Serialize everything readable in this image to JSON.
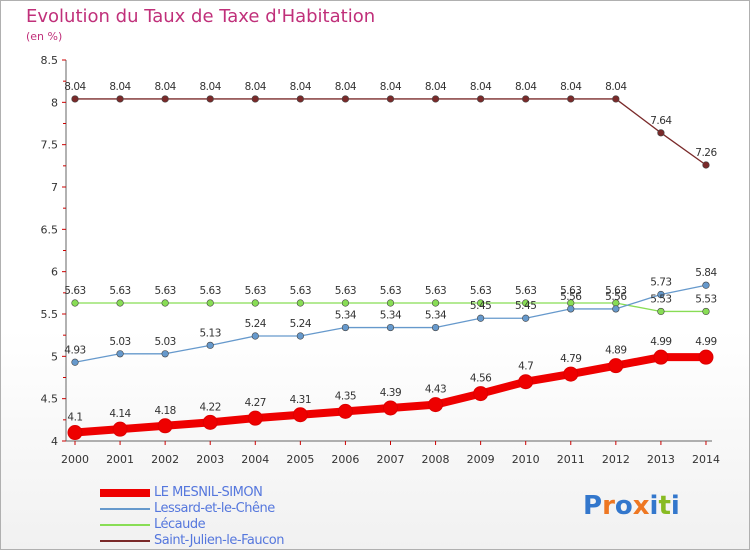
{
  "header": {
    "title": "Evolution du Taux de Taxe d'Habitation",
    "unit": "(en %)"
  },
  "chart_data": {
    "type": "line",
    "title": "Evolution du Taux de Taxe d'Habitation",
    "ylabel": "(en %)",
    "xlabel": "",
    "ylim": [
      4,
      8.5
    ],
    "yticks": [
      "4",
      "4.5",
      "5",
      "5.5",
      "6",
      "6.5",
      "7",
      "7.5",
      "8",
      "8.5"
    ],
    "x": [
      "2000",
      "2001",
      "2002",
      "2003",
      "2004",
      "2005",
      "2006",
      "2007",
      "2008",
      "2009",
      "2010",
      "2011",
      "2012",
      "2013",
      "2014"
    ],
    "grid": false,
    "legend_position": "bottom",
    "series": [
      {
        "name": "LE MESNIL-SIMON",
        "color": "#ee0000",
        "values": [
          4.1,
          4.14,
          4.18,
          4.22,
          4.27,
          4.31,
          4.35,
          4.39,
          4.43,
          4.56,
          4.7,
          4.79,
          4.89,
          4.99,
          4.99
        ],
        "labels": [
          "4.1",
          "4.14",
          "4.18",
          "4.22",
          "4.27",
          "4.31",
          "4.35",
          "4.39",
          "4.43",
          "4.56",
          "4.7",
          "4.79",
          "4.89",
          "4.99",
          "4.99"
        ]
      },
      {
        "name": "Lessard-et-le-Chêne",
        "color": "#6699cc",
        "values": [
          4.93,
          5.03,
          5.03,
          5.13,
          5.24,
          5.24,
          5.34,
          5.34,
          5.34,
          5.45,
          5.45,
          5.56,
          5.56,
          5.73,
          5.84
        ],
        "labels": [
          "4.93",
          "5.03",
          "5.03",
          "5.13",
          "5.24",
          "5.24",
          "5.34",
          "5.34",
          "5.34",
          "5.45",
          "5.45",
          "5.56",
          "5.56",
          "5.73",
          "5.84"
        ]
      },
      {
        "name": "Lécaude",
        "color": "#88dd55",
        "values": [
          5.63,
          5.63,
          5.63,
          5.63,
          5.63,
          5.63,
          5.63,
          5.63,
          5.63,
          5.63,
          5.63,
          5.63,
          5.63,
          5.53,
          5.53
        ],
        "labels": [
          "5.63",
          "5.63",
          "5.63",
          "5.63",
          "5.63",
          "5.63",
          "5.63",
          "5.63",
          "5.63",
          "5.63",
          "5.63",
          "5.63",
          "5.63",
          "5.53",
          "5.53"
        ]
      },
      {
        "name": "Saint-Julien-le-Faucon",
        "color": "#7a2a2a",
        "values": [
          8.04,
          8.04,
          8.04,
          8.04,
          8.04,
          8.04,
          8.04,
          8.04,
          8.04,
          8.04,
          8.04,
          8.04,
          8.04,
          7.64,
          7.26
        ],
        "labels": [
          "8.04",
          "8.04",
          "8.04",
          "8.04",
          "8.04",
          "8.04",
          "8.04",
          "8.04",
          "8.04",
          "8.04",
          "8.04",
          "8.04",
          "8.04",
          "7.64",
          "7.26"
        ]
      }
    ]
  },
  "logo": {
    "text": "Proxiti",
    "colors": [
      "#3377cc",
      "#ee7722",
      "#3377cc",
      "#ee7722",
      "#3377cc",
      "#88bb22",
      "#3377cc"
    ]
  }
}
